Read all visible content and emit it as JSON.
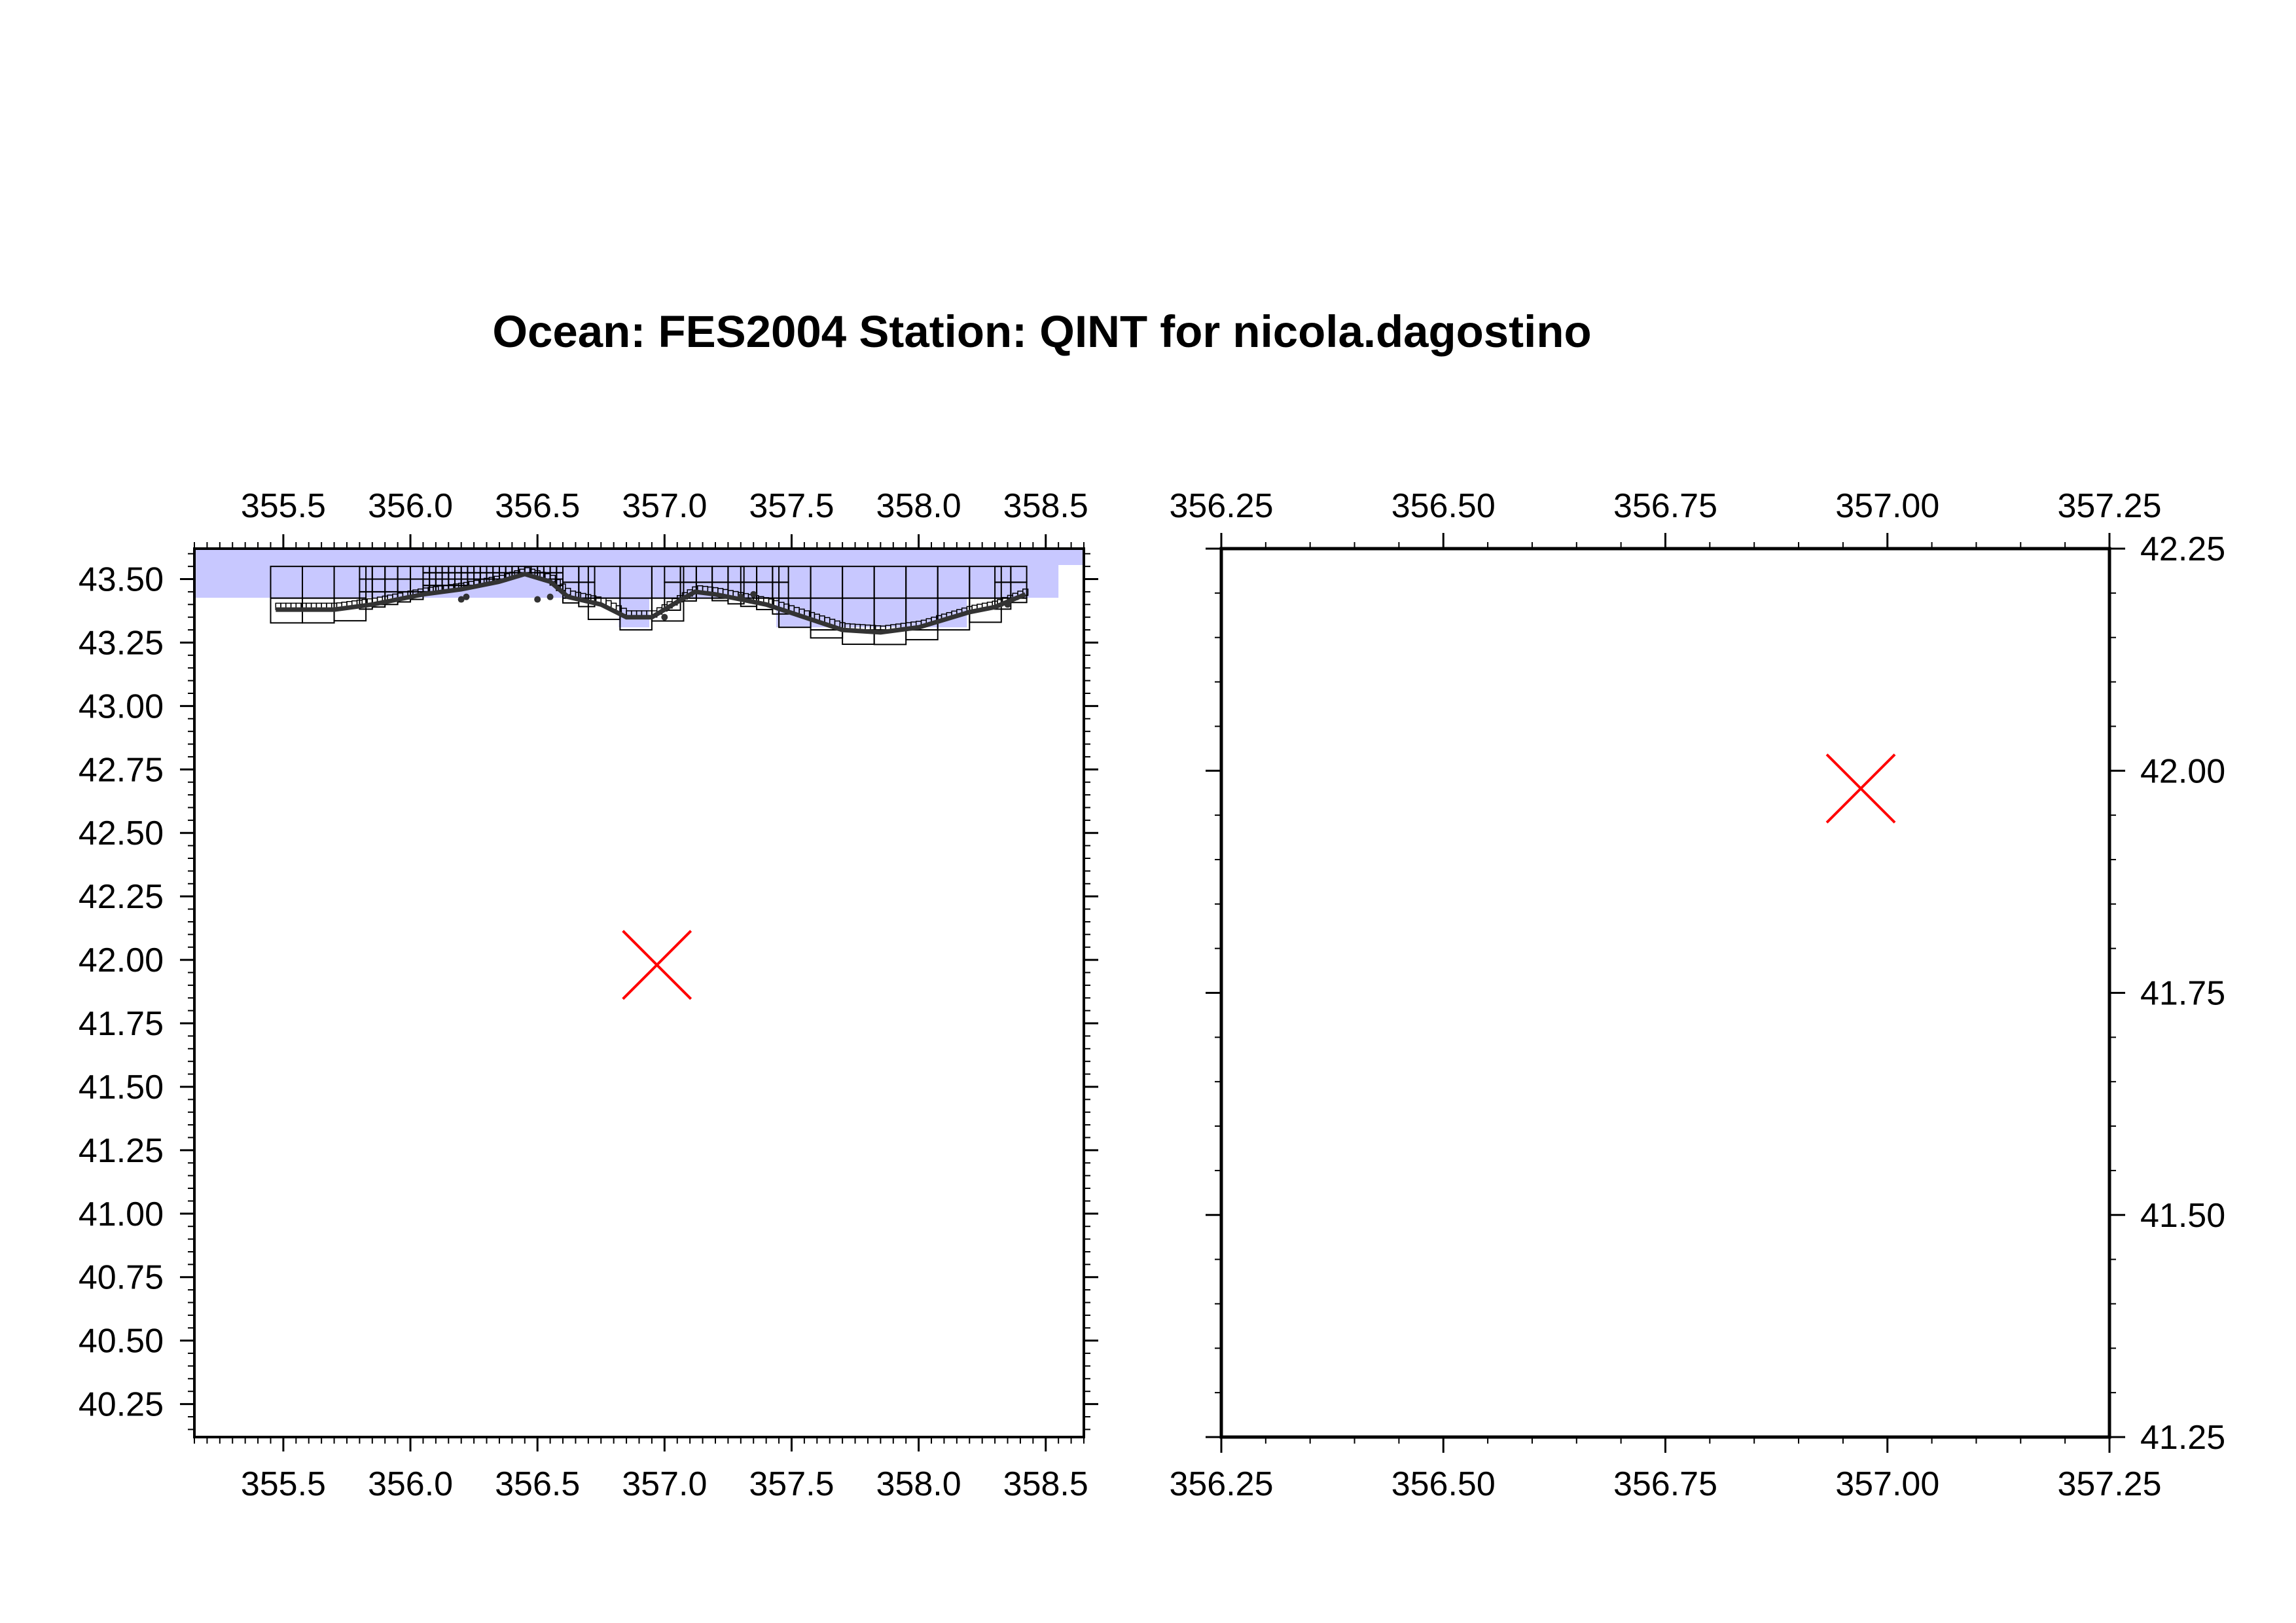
{
  "title": "Ocean: FES2004  Station: QINT  for nicola.dagostino",
  "colors": {
    "ocean_fill": "#c8c8ff",
    "grid_line": "#000000",
    "coast": "#333333",
    "station_marker": "#ff0000",
    "frame": "#000000"
  },
  "left_map": {
    "x_ticks": [
      "355.5",
      "356.0",
      "356.5",
      "357.0",
      "357.5",
      "358.0",
      "358.5"
    ],
    "y_ticks": [
      "43.50",
      "43.25",
      "43.00",
      "42.75",
      "42.50",
      "42.25",
      "42.00",
      "41.75",
      "41.50",
      "41.25",
      "41.00",
      "40.75",
      "40.50",
      "40.25"
    ],
    "x_range": [
      355.15,
      358.65
    ],
    "y_range": [
      40.12,
      43.62
    ],
    "station": {
      "lon": 356.97,
      "lat": 41.98
    }
  },
  "right_map": {
    "x_ticks": [
      "356.25",
      "356.50",
      "356.75",
      "357.00",
      "357.25"
    ],
    "y_ticks": [
      "42.25",
      "42.00",
      "41.75",
      "41.50",
      "41.25"
    ],
    "x_range": [
      356.25,
      357.25
    ],
    "y_range": [
      41.25,
      42.25
    ],
    "station": {
      "lon": 356.97,
      "lat": 41.98
    }
  },
  "station_marker": "x-cross-icon"
}
